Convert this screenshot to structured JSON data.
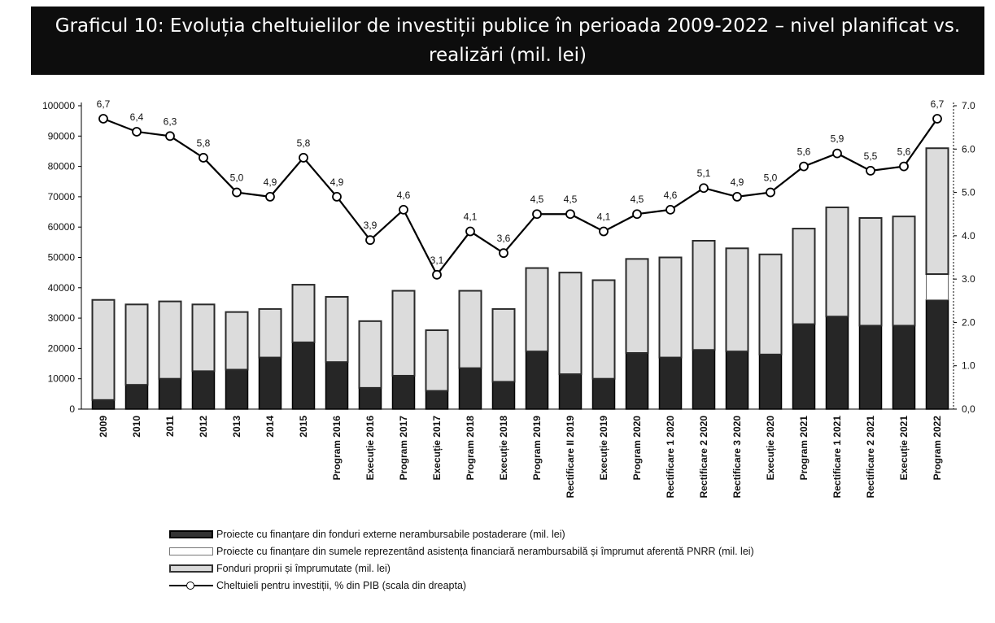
{
  "title": "Graficul 10: Evoluția cheltuielilor de investiții publice în perioada 2009-2022 – nivel planificat vs. realizări (mil. lei)",
  "chart_data": {
    "type": "bar",
    "categories": [
      "2009",
      "2010",
      "2011",
      "2012",
      "2013",
      "2014",
      "2015",
      "Program 2016",
      "Execuție 2016",
      "Program 2017",
      "Execuție 2017",
      "Program 2018",
      "Execuție 2018",
      "Program 2019",
      "Rectificare II 2019",
      "Execuție 2019",
      "Program 2020",
      "Rectificare 1 2020",
      "Rectificare 2 2020",
      "Rectificare 3 2020",
      "Execuție 2020",
      "Program 2021",
      "Rectificare 1 2021",
      "Rectificare 2 2021",
      "Execuție 2021",
      "Program 2022"
    ],
    "series": [
      {
        "name": "Proiecte cu finanțare din fonduri externe nerambursabile postaderare (mil. lei)",
        "values": [
          3000,
          8000,
          10000,
          12500,
          13000,
          17000,
          22000,
          15500,
          7000,
          11000,
          6000,
          13500,
          9000,
          19000,
          11500,
          10000,
          18500,
          17000,
          19500,
          19000,
          18000,
          28000,
          30500,
          27500,
          27500,
          36000
        ]
      },
      {
        "name": "Proiecte cu finanțare din sumele reprezentând asistența financiară nerambursabilă și împrumut aferentă PNRR (mil. lei)",
        "values": [
          0,
          0,
          0,
          0,
          0,
          0,
          0,
          0,
          0,
          0,
          0,
          0,
          0,
          0,
          0,
          0,
          0,
          0,
          0,
          0,
          0,
          0,
          0,
          0,
          0,
          8500
        ]
      },
      {
        "name": "Fonduri proprii și împrumutate (mil. lei)",
        "values": [
          33000,
          26500,
          25500,
          22000,
          19000,
          16000,
          19000,
          21500,
          22000,
          28000,
          20000,
          25500,
          24000,
          27500,
          33500,
          32500,
          31000,
          33000,
          36000,
          34000,
          33000,
          31500,
          36000,
          35500,
          36000,
          41500
        ]
      },
      {
        "name": "Cheltuieli pentru investiții, % din PIB (scala din dreapta)",
        "axis": "right",
        "values": [
          6.7,
          6.4,
          6.3,
          5.8,
          5.0,
          4.9,
          5.8,
          4.9,
          3.9,
          4.6,
          3.1,
          4.1,
          3.6,
          4.5,
          4.5,
          4.1,
          4.5,
          4.6,
          5.1,
          4.9,
          5.0,
          5.6,
          5.9,
          5.5,
          5.6,
          6.7
        ],
        "labels": [
          "6,7",
          "6,4",
          "6,3",
          "5,8",
          "5,0",
          "4,9",
          "5,8",
          "4,9",
          "3,9",
          "4,6",
          "3,1",
          "4,1",
          "3,6",
          "4,5",
          "4,5",
          "4,1",
          "4,5",
          "4,6",
          "5,1",
          "4,9",
          "5,0",
          "5,6",
          "5,9",
          "5,5",
          "5,6",
          "6,7"
        ]
      }
    ],
    "y_left": {
      "ylim": [
        0,
        100000
      ],
      "ticks": [
        "0",
        "10000",
        "20000",
        "30000",
        "40000",
        "50000",
        "60000",
        "70000",
        "80000",
        "90000",
        "100000"
      ]
    },
    "y_right": {
      "ylim": [
        0,
        7.0
      ],
      "ticks": [
        "0,0",
        "1.0",
        "2.0",
        "3.0",
        "4.0",
        "5.0",
        "6.0",
        "7.0"
      ]
    },
    "legend_position": "bottom"
  }
}
